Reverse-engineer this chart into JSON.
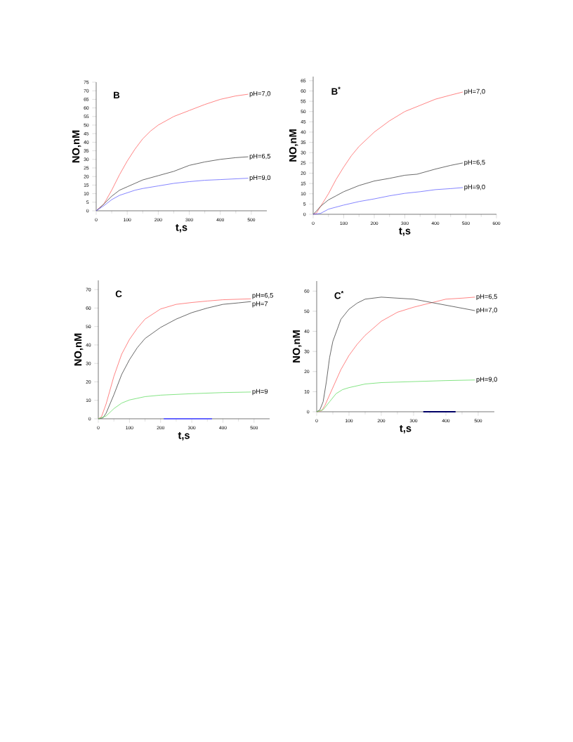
{
  "chart_data": [
    {
      "type": "line",
      "title": "B",
      "xlabel": "t,s",
      "ylabel": "NO,nM",
      "xlim": [
        0,
        550
      ],
      "xticks": [
        0,
        100,
        200,
        300,
        400,
        500
      ],
      "ylim": [
        0,
        75
      ],
      "yticks": [
        0,
        5,
        10,
        15,
        20,
        25,
        30,
        35,
        40,
        45,
        50,
        55,
        60,
        65,
        70,
        75
      ],
      "series": [
        {
          "name": "pH=7,0",
          "color": "#ff6666",
          "x": [
            0,
            25,
            50,
            75,
            100,
            125,
            150,
            175,
            200,
            250,
            300,
            350,
            400,
            450,
            490
          ],
          "values": [
            0,
            4,
            12,
            21,
            29,
            36,
            42,
            46.5,
            50,
            55,
            58.5,
            62,
            65,
            67,
            68
          ]
        },
        {
          "name": "pH=6,5",
          "color": "#444444",
          "x": [
            0,
            10,
            25,
            50,
            75,
            100,
            125,
            150,
            200,
            250,
            300,
            350,
            400,
            450,
            490
          ],
          "values": [
            0,
            1.5,
            4,
            8.5,
            12,
            14,
            16,
            18,
            20.5,
            23,
            26.5,
            28.5,
            30,
            31,
            31.5
          ]
        },
        {
          "name": "pH=9,0",
          "color": "#6666ff",
          "x": [
            0,
            25,
            50,
            75,
            100,
            125,
            150,
            200,
            250,
            300,
            350,
            400,
            490
          ],
          "values": [
            0,
            3,
            6.5,
            9,
            10.5,
            12,
            13,
            14.5,
            16,
            17,
            17.8,
            18.2,
            19
          ]
        }
      ]
    },
    {
      "type": "line",
      "title": "B$^{*}$",
      "xlabel": "t,s",
      "ylabel": "NO,nM",
      "xlim": [
        0,
        600
      ],
      "xticks": [
        0,
        100,
        200,
        300,
        400,
        500,
        600
      ],
      "ylim": [
        0,
        67
      ],
      "yticks": [
        0,
        5,
        10,
        15,
        20,
        25,
        30,
        35,
        40,
        45,
        50,
        55,
        60,
        65
      ],
      "series": [
        {
          "name": "pH=7,0",
          "color": "#ff6666",
          "x": [
            0,
            10,
            25,
            50,
            75,
            100,
            125,
            150,
            200,
            250,
            300,
            350,
            400,
            450,
            490
          ],
          "values": [
            0,
            0.5,
            4,
            10,
            17,
            23,
            28.5,
            33,
            40,
            45.5,
            50,
            53,
            56,
            58,
            59.5
          ]
        },
        {
          "name": "pH=6,5",
          "color": "#444444",
          "x": [
            0,
            10,
            25,
            50,
            75,
            100,
            150,
            200,
            250,
            300,
            340,
            400,
            450,
            490
          ],
          "values": [
            0,
            1.5,
            4,
            7,
            9,
            11,
            14,
            16.2,
            17.5,
            19,
            19.5,
            22,
            23.8,
            25
          ]
        },
        {
          "name": "pH=9,0",
          "color": "#6666ff",
          "x": [
            0,
            25,
            50,
            100,
            150,
            200,
            250,
            300,
            350,
            400,
            450,
            490
          ],
          "values": [
            0,
            0.5,
            2.5,
            4.5,
            6.2,
            7.5,
            9,
            10.2,
            11,
            12,
            12.5,
            13
          ]
        }
      ]
    },
    {
      "type": "line",
      "title": "C",
      "xlabel": "t,s",
      "ylabel": "NO,nM",
      "xlim": [
        0,
        550
      ],
      "xticks": [
        0,
        100,
        200,
        300,
        400,
        500
      ],
      "ylim": [
        0,
        75
      ],
      "yticks": [
        0,
        10,
        20,
        30,
        40,
        50,
        60,
        70
      ],
      "series": [
        {
          "name": "pH=6,5",
          "color": "#ff6666",
          "x": [
            0,
            10,
            25,
            50,
            75,
            100,
            125,
            150,
            200,
            250,
            300,
            350,
            400,
            490
          ],
          "values": [
            0,
            1,
            8,
            23,
            35,
            43,
            49,
            54,
            59.5,
            62,
            63,
            63.8,
            64.5,
            65
          ]
        },
        {
          "name": "pH=7",
          "color": "#444444",
          "x": [
            0,
            15,
            25,
            50,
            75,
            100,
            125,
            150,
            200,
            250,
            300,
            350,
            400,
            450,
            490
          ],
          "values": [
            0,
            0.5,
            3,
            13,
            24,
            32,
            38.5,
            43.5,
            49.5,
            54,
            57.5,
            60,
            62,
            62.8,
            63.5
          ]
        },
        {
          "name": "pH=9",
          "color": "#66dd66",
          "x": [
            0,
            25,
            50,
            75,
            100,
            150,
            200,
            250,
            300,
            400,
            490
          ],
          "values": [
            0,
            1.5,
            5.5,
            8.5,
            10.2,
            12,
            12.8,
            13.2,
            13.6,
            14.2,
            14.5
          ]
        },
        {
          "color": "#6666ff",
          "x": [
            210,
            365
          ],
          "values": [
            0,
            0
          ]
        }
      ]
    },
    {
      "type": "line",
      "title": "C$^{*}$",
      "xlabel": "t,s",
      "ylabel": "NO,nM",
      "xlim": [
        0,
        550
      ],
      "xticks": [
        0,
        100,
        200,
        300,
        400,
        500
      ],
      "ylim": [
        0,
        65
      ],
      "yticks": [
        0,
        10,
        20,
        30,
        40,
        50,
        60
      ],
      "series": [
        {
          "name": "pH=6,5",
          "color": "#ff6666",
          "x": [
            0,
            15,
            25,
            50,
            75,
            100,
            125,
            150,
            200,
            250,
            300,
            350,
            400,
            450,
            490
          ],
          "values": [
            0,
            0.5,
            3,
            12,
            21,
            28,
            33.5,
            38,
            45,
            49.5,
            52,
            54,
            56,
            56.5,
            57
          ]
        },
        {
          "name": "pH=7,0",
          "color": "#444444",
          "x": [
            0,
            10,
            20,
            30,
            40,
            50,
            75,
            100,
            125,
            150,
            200,
            250,
            300,
            350,
            400,
            450,
            490
          ],
          "values": [
            0,
            1,
            5,
            15,
            27,
            35,
            46,
            51,
            54,
            56,
            57,
            56.5,
            56,
            54.5,
            53,
            51.5,
            50.3
          ]
        },
        {
          "name": "pH=9,0",
          "color": "#66dd66",
          "x": [
            0,
            20,
            40,
            60,
            80,
            100,
            150,
            200,
            300,
            400,
            490
          ],
          "values": [
            0,
            1,
            5,
            9,
            11,
            12,
            13.8,
            14.5,
            15,
            15.5,
            15.8
          ]
        },
        {
          "color": "#000066",
          "x": [
            330,
            430
          ],
          "values": [
            0,
            0
          ]
        }
      ]
    }
  ]
}
